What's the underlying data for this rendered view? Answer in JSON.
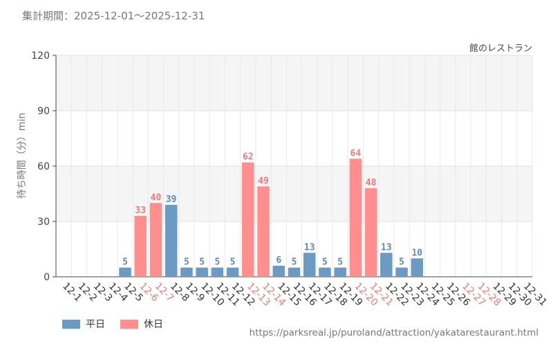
{
  "header": {
    "period": "集計期間：2025-12-01～2025-12-31"
  },
  "colors": {
    "weekday": "#6b9ac4",
    "holiday": "#ff8f8f",
    "weekday_text": "#5b8ab6",
    "holiday_text": "#f07a7a",
    "tick_default": "#333333"
  },
  "chart_data": {
    "type": "bar",
    "title": "館のレストラン",
    "ylabel": "待ち時間（分）min",
    "xlabel": "",
    "ylim": [
      0,
      120
    ],
    "yticks": [
      0,
      30,
      60,
      90,
      120
    ],
    "grid": true,
    "legend_position": "bottom-left",
    "categories": [
      "12-1",
      "12-2",
      "12-3",
      "12-4",
      "12-5",
      "12-6",
      "12-7",
      "12-8",
      "12-9",
      "12-10",
      "12-11",
      "12-12",
      "12-13",
      "12-14",
      "12-15",
      "12-16",
      "12-17",
      "12-18",
      "12-19",
      "12-20",
      "12-21",
      "12-22",
      "12-23",
      "12-24",
      "12-25",
      "12-26",
      "12-27",
      "12-28",
      "12-29",
      "12-30",
      "12-31"
    ],
    "values": [
      null,
      null,
      null,
      null,
      5,
      33,
      40,
      39,
      5,
      5,
      5,
      5,
      62,
      49,
      6,
      5,
      13,
      5,
      5,
      64,
      48,
      13,
      5,
      10,
      null,
      null,
      null,
      null,
      null,
      null,
      null
    ],
    "day_type": [
      "weekday",
      "weekday",
      "weekday",
      "weekday",
      "weekday",
      "holiday",
      "holiday",
      "weekday",
      "weekday",
      "weekday",
      "weekday",
      "weekday",
      "holiday",
      "holiday",
      "weekday",
      "weekday",
      "weekday",
      "weekday",
      "weekday",
      "holiday",
      "holiday",
      "weekday",
      "weekday",
      "weekday",
      "weekday",
      "weekday",
      "holiday",
      "holiday",
      "weekday",
      "weekday",
      "weekday"
    ],
    "series_legend": [
      {
        "name": "平日",
        "key": "weekday"
      },
      {
        "name": "休日",
        "key": "holiday"
      }
    ]
  },
  "footer": {
    "source": "https://parksreal.jp/puroland/attraction/yakatarestaurant.html"
  }
}
